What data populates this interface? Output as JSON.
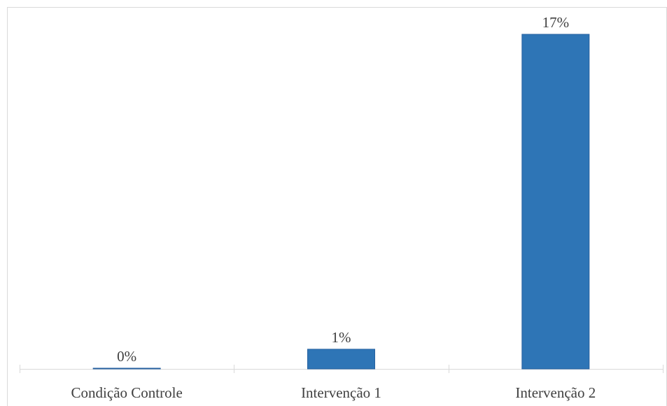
{
  "chart_data": {
    "type": "bar",
    "categories": [
      "Condição Controle",
      "Intervenção 1",
      "Intervenção 2"
    ],
    "values": [
      0,
      1,
      17
    ],
    "data_labels": [
      "0%",
      "1%",
      "17%"
    ],
    "unit": "%",
    "title": "",
    "xlabel": "",
    "ylabel": "",
    "ylim": [
      0,
      17
    ],
    "grid": false,
    "legend": "none",
    "colors": {
      "bar": "#2E75B6",
      "bar_border": "#2761A0",
      "axis": "#d9d9d9",
      "text": "#404040"
    }
  }
}
